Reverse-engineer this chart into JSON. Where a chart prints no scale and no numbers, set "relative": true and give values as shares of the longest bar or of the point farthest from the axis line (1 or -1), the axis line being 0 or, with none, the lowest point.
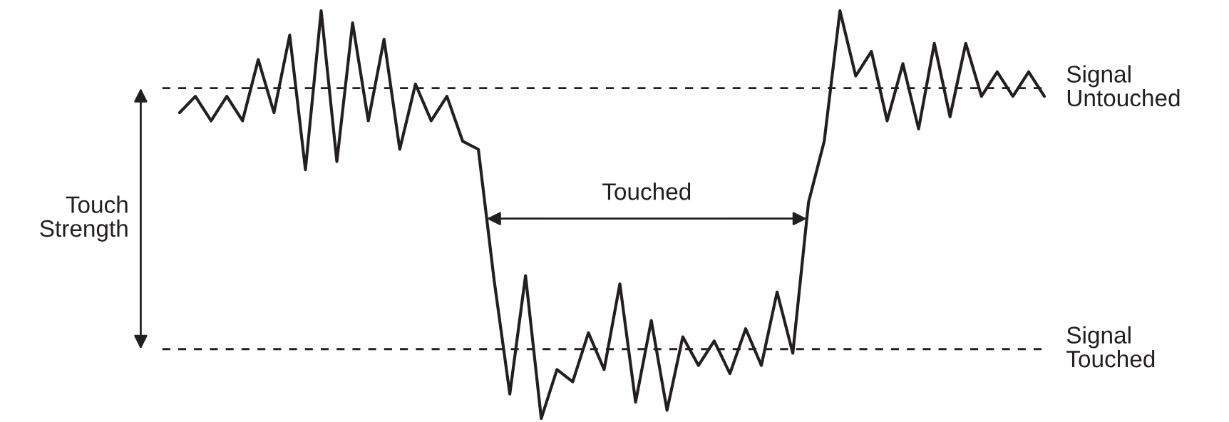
{
  "chart_data": {
    "type": "line",
    "relative": true,
    "tick_labels": false,
    "marker": "none",
    "line_style": "solid",
    "categories": [
      null,
      null,
      null,
      null,
      null,
      null,
      null,
      null,
      null,
      null,
      null,
      null,
      null,
      null,
      null,
      null,
      null,
      null,
      null,
      null,
      null,
      null,
      null,
      null,
      null,
      null,
      null,
      null,
      null,
      null,
      null,
      null,
      null,
      null,
      null,
      null,
      null,
      null,
      null,
      null,
      null,
      null,
      null,
      null,
      null,
      null,
      null,
      null,
      null,
      null,
      null,
      null,
      null,
      null,
      null,
      null
    ],
    "series": [
      {
        "color": "#231f20",
        "values": [
          0.75,
          0.79,
          0.73,
          0.79,
          0.73,
          0.88,
          0.75,
          0.94,
          0.61,
          1.0,
          0.63,
          0.97,
          0.73,
          0.93,
          0.66,
          0.82,
          0.73,
          0.79,
          0.68,
          0.66,
          0.34,
          0.06,
          0.35,
          0,
          0.12,
          0.09,
          0.21,
          0.12,
          0.33,
          0.04,
          0.24,
          0.02,
          0.2,
          0.13,
          0.19,
          0.11,
          0.22,
          0.13,
          0.31,
          0.16,
          0.53,
          0.68,
          1.0,
          0.84,
          0.9,
          0.73,
          0.87,
          0.71,
          0.92,
          0.74,
          0.92,
          0.79,
          0.85,
          0.79,
          0.85,
          0.79
        ]
      }
    ],
    "ref_lines": [
      {
        "axis": "y",
        "value": 0.81,
        "label": "Signal\nUntouched",
        "color": "#231f20",
        "line_style": "dashed"
      },
      {
        "axis": "y",
        "value": 0.17,
        "label": "Signal\nTouched",
        "color": "#231f20",
        "line_style": "dashed"
      }
    ],
    "annotations": [
      "Touch\nStrength",
      "Touched"
    ]
  }
}
